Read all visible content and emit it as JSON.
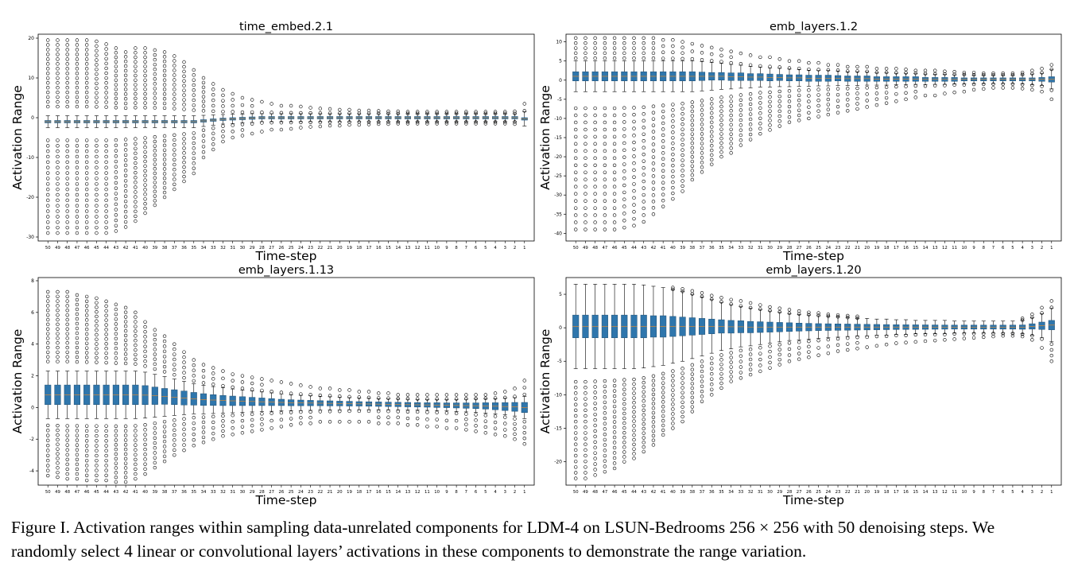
{
  "figure": {
    "caption_label": "Figure I.",
    "caption_text": "Activation ranges within sampling data-unrelated components for LDM-4 on LSUN-Bedrooms 256 × 256 with 50 denoising steps. We randomly select 4 linear or convolutional layers’ activations in these components to demonstrate the range variation."
  },
  "colors": {
    "box": "#2f76ac",
    "box_edge": "#1f4f72",
    "frame": "#000000"
  },
  "chart_data": [
    {
      "type": "box",
      "title": "time_embed.2.1",
      "xlabel": "Time-step",
      "ylabel": "Activation Range",
      "ylim": [
        -31,
        21
      ],
      "yticks": [
        -30,
        -20,
        -10,
        0,
        10,
        20
      ],
      "x": [
        50,
        49,
        48,
        47,
        46,
        45,
        44,
        43,
        42,
        41,
        40,
        39,
        38,
        37,
        36,
        35,
        34,
        33,
        32,
        31,
        30,
        29,
        28,
        27,
        26,
        25,
        24,
        23,
        22,
        21,
        20,
        19,
        18,
        17,
        16,
        15,
        14,
        13,
        12,
        11,
        10,
        9,
        8,
        7,
        6,
        5,
        4,
        3,
        2,
        1
      ],
      "box_half": [
        0.3,
        0.3,
        0.3,
        0.3,
        0.3,
        0.3,
        0.3,
        0.3,
        0.3,
        0.3,
        0.3,
        0.3,
        0.3,
        0.3,
        0.3,
        0.3,
        0.3,
        0.3,
        0.3,
        0.3,
        0.3,
        0.3,
        0.3,
        0.3,
        0.3,
        0.3,
        0.3,
        0.3,
        0.3,
        0.3,
        0.3,
        0.3,
        0.3,
        0.3,
        0.3,
        0.3,
        0.3,
        0.3,
        0.3,
        0.3,
        0.3,
        0.3,
        0.3,
        0.3,
        0.3,
        0.3,
        0.3,
        0.3,
        0.3,
        0.3
      ],
      "center": [
        -1,
        -1,
        -1,
        -1,
        -1,
        -1,
        -1,
        -1,
        -1,
        -1,
        -1,
        -1,
        -1,
        -1,
        -1,
        -1,
        -0.8,
        -0.6,
        -0.4,
        -0.3,
        -0.2,
        -0.1,
        0,
        0,
        0,
        0,
        0,
        0,
        0,
        0,
        0,
        0,
        0,
        0,
        0,
        0,
        0,
        0,
        0,
        0,
        0,
        0,
        0,
        0,
        0,
        0,
        0,
        0,
        0,
        -0.3
      ],
      "whisker": [
        1.5,
        1.5,
        1.5,
        1.5,
        1.5,
        1.5,
        1.5,
        1.5,
        1.5,
        1.5,
        1.5,
        1.5,
        1.5,
        1.5,
        1.5,
        1.5,
        1.4,
        1.3,
        1.2,
        1.2,
        1.1,
        1.1,
        1.0,
        1.0,
        1.0,
        1.0,
        1.0,
        1.0,
        1.0,
        1.0,
        1.0,
        1.0,
        1.0,
        1.0,
        1.0,
        1.0,
        1.0,
        1.0,
        1.0,
        1.0,
        1.0,
        1.0,
        1.0,
        1.0,
        1.0,
        1.0,
        1.0,
        1.0,
        1.0,
        1.8
      ],
      "out_max": [
        19.5,
        19.5,
        19.5,
        19.5,
        19.5,
        19.2,
        18.5,
        17.5,
        16.5,
        17.5,
        17.5,
        17,
        16.5,
        15.5,
        14,
        12,
        10,
        8.5,
        7,
        6,
        5,
        4.5,
        4,
        3.5,
        3,
        3,
        2.8,
        2.5,
        2.3,
        2.2,
        2,
        2,
        1.8,
        1.8,
        1.7,
        1.6,
        1.6,
        1.5,
        1.5,
        1.5,
        1.5,
        1.5,
        1.5,
        1.5,
        1.5,
        1.5,
        1.5,
        1.5,
        1.6,
        3.5
      ],
      "out_min": [
        -29,
        -29,
        -29,
        -29,
        -29,
        -29,
        -29,
        -28.5,
        -27.5,
        -26,
        -24,
        -22,
        -20,
        -18,
        -16,
        -14,
        -10,
        -8,
        -6,
        -5,
        -4.5,
        -4,
        -3.5,
        -3,
        -3,
        -2.8,
        -2.5,
        -2.3,
        -2.2,
        -2,
        -2,
        -1.8,
        -1.8,
        -1.7,
        -1.6,
        -1.6,
        -1.5,
        -1.5,
        -1.5,
        -1.5,
        -1.5,
        -1.5,
        -1.5,
        -1.5,
        -1.5,
        -1.5,
        -1.5,
        -1.5,
        -1.6,
        -2.5
      ]
    },
    {
      "type": "box",
      "title": "emb_layers.1.2",
      "xlabel": "Time-step",
      "ylabel": "Activation Range",
      "ylim": [
        -42,
        12
      ],
      "yticks": [
        -40,
        -35,
        -30,
        -25,
        -20,
        -15,
        -10,
        -5,
        0,
        5,
        10
      ],
      "x": [
        50,
        49,
        48,
        47,
        46,
        45,
        44,
        43,
        42,
        41,
        40,
        39,
        38,
        37,
        36,
        35,
        34,
        33,
        32,
        31,
        30,
        29,
        28,
        27,
        26,
        25,
        24,
        23,
        22,
        21,
        20,
        19,
        18,
        17,
        16,
        15,
        14,
        13,
        12,
        11,
        10,
        9,
        8,
        7,
        6,
        5,
        4,
        3,
        2,
        1
      ],
      "box_half": [
        1.2,
        1.2,
        1.2,
        1.2,
        1.2,
        1.2,
        1.2,
        1.2,
        1.2,
        1.2,
        1.2,
        1.2,
        1.2,
        1.1,
        1.0,
        1.0,
        1.0,
        1.0,
        0.9,
        0.9,
        0.9,
        0.8,
        0.8,
        0.8,
        0.8,
        0.8,
        0.8,
        0.7,
        0.7,
        0.7,
        0.7,
        0.6,
        0.6,
        0.6,
        0.6,
        0.6,
        0.5,
        0.5,
        0.5,
        0.5,
        0.4,
        0.4,
        0.4,
        0.4,
        0.4,
        0.4,
        0.4,
        0.4,
        0.5,
        0.7
      ],
      "center": [
        1,
        1,
        1,
        1,
        1,
        1,
        1,
        1,
        1,
        1,
        1,
        1,
        1,
        1,
        1,
        1,
        0.9,
        0.9,
        0.8,
        0.8,
        0.7,
        0.7,
        0.6,
        0.6,
        0.5,
        0.5,
        0.5,
        0.5,
        0.4,
        0.4,
        0.4,
        0.3,
        0.3,
        0.3,
        0.3,
        0.3,
        0.2,
        0.2,
        0.2,
        0.2,
        0.2,
        0.2,
        0.2,
        0.2,
        0.2,
        0.2,
        0.2,
        0.2,
        0.2,
        0.2
      ],
      "whisker": [
        4,
        4,
        4,
        4,
        4,
        4,
        4,
        4,
        4,
        4,
        4,
        4,
        4,
        3.8,
        3.6,
        3.4,
        3.2,
        3,
        2.8,
        2.6,
        2.5,
        2.4,
        2.3,
        2.2,
        2.1,
        2,
        2,
        1.9,
        1.8,
        1.8,
        1.7,
        1.6,
        1.6,
        1.5,
        1.5,
        1.4,
        1.4,
        1.3,
        1.3,
        1.2,
        1.2,
        1.1,
        1.1,
        1.1,
        1.1,
        1.1,
        1.2,
        1.4,
        1.6,
        2.5
      ],
      "out_max": [
        11,
        11,
        11,
        11,
        11,
        11,
        11,
        11,
        11,
        10.5,
        10.5,
        10,
        9.5,
        9,
        8.5,
        8,
        7.5,
        7,
        6.5,
        6,
        6,
        5.5,
        5,
        5,
        4.5,
        4.5,
        4,
        4,
        3.5,
        3.5,
        3.5,
        3,
        3,
        3,
        2.8,
        2.5,
        2.5,
        2.5,
        2.3,
        2.2,
        2,
        2,
        1.8,
        1.8,
        1.8,
        1.8,
        2,
        2.5,
        3,
        4
      ],
      "out_min": [
        -39,
        -39,
        -39,
        -39,
        -39,
        -38.5,
        -38,
        -37,
        -35,
        -33,
        -31,
        -29,
        -26,
        -24,
        -22,
        -20,
        -19,
        -17,
        -15.5,
        -14,
        -13,
        -12,
        -11,
        -10.5,
        -10,
        -9.5,
        -9,
        -8.5,
        -8,
        -7.5,
        -7,
        -6.5,
        -6,
        -5.5,
        -5,
        -4.5,
        -4,
        -4,
        -3.5,
        -3.2,
        -3,
        -2.5,
        -2.3,
        -2,
        -2,
        -2,
        -2.2,
        -2.5,
        -3,
        -5
      ]
    },
    {
      "type": "box",
      "title": "emb_layers.1.13",
      "xlabel": "Time-step",
      "ylabel": "Activation Range",
      "ylim": [
        -4.9,
        8.2
      ],
      "yticks": [
        -4,
        -2,
        0,
        2,
        4,
        6,
        8
      ],
      "x": [
        50,
        49,
        48,
        47,
        46,
        45,
        44,
        43,
        42,
        41,
        40,
        39,
        38,
        37,
        36,
        35,
        34,
        33,
        32,
        31,
        30,
        29,
        28,
        27,
        26,
        25,
        24,
        23,
        22,
        21,
        20,
        19,
        18,
        17,
        16,
        15,
        14,
        13,
        12,
        11,
        10,
        9,
        8,
        7,
        6,
        5,
        4,
        3,
        2,
        1
      ],
      "box_half": [
        0.62,
        0.62,
        0.62,
        0.62,
        0.62,
        0.62,
        0.62,
        0.62,
        0.62,
        0.62,
        0.6,
        0.55,
        0.5,
        0.47,
        0.44,
        0.4,
        0.37,
        0.34,
        0.32,
        0.3,
        0.28,
        0.26,
        0.24,
        0.22,
        0.2,
        0.19,
        0.18,
        0.17,
        0.16,
        0.16,
        0.15,
        0.15,
        0.14,
        0.14,
        0.14,
        0.14,
        0.14,
        0.14,
        0.14,
        0.14,
        0.15,
        0.15,
        0.16,
        0.17,
        0.18,
        0.2,
        0.22,
        0.25,
        0.28,
        0.32
      ],
      "center": [
        0.8,
        0.8,
        0.8,
        0.8,
        0.8,
        0.8,
        0.8,
        0.8,
        0.8,
        0.8,
        0.78,
        0.74,
        0.7,
        0.65,
        0.6,
        0.55,
        0.5,
        0.47,
        0.44,
        0.42,
        0.4,
        0.38,
        0.36,
        0.34,
        0.32,
        0.3,
        0.29,
        0.28,
        0.27,
        0.26,
        0.25,
        0.24,
        0.23,
        0.22,
        0.21,
        0.2,
        0.19,
        0.18,
        0.17,
        0.16,
        0.15,
        0.14,
        0.13,
        0.12,
        0.11,
        0.1,
        0.08,
        0.06,
        0.04,
        0.0
      ],
      "whisker": [
        1.5,
        1.5,
        1.5,
        1.5,
        1.5,
        1.5,
        1.5,
        1.5,
        1.5,
        1.5,
        1.45,
        1.35,
        1.25,
        1.15,
        1.05,
        0.95,
        0.9,
        0.85,
        0.8,
        0.75,
        0.7,
        0.66,
        0.62,
        0.58,
        0.54,
        0.5,
        0.48,
        0.46,
        0.44,
        0.42,
        0.4,
        0.38,
        0.37,
        0.36,
        0.35,
        0.34,
        0.34,
        0.34,
        0.34,
        0.34,
        0.35,
        0.36,
        0.38,
        0.4,
        0.42,
        0.45,
        0.48,
        0.52,
        0.58,
        0.7
      ],
      "out_max": [
        7.3,
        7.3,
        7.3,
        7.1,
        7.0,
        6.9,
        6.7,
        6.5,
        6.3,
        6.0,
        5.4,
        4.9,
        4.5,
        4.0,
        3.5,
        3.0,
        2.7,
        2.5,
        2.3,
        2.1,
        2.0,
        1.9,
        1.8,
        1.7,
        1.6,
        1.5,
        1.4,
        1.3,
        1.2,
        1.2,
        1.1,
        1.1,
        1.0,
        1.0,
        0.9,
        0.9,
        0.8,
        0.8,
        0.8,
        0.8,
        0.8,
        0.8,
        0.8,
        0.8,
        0.8,
        0.8,
        0.9,
        1.0,
        1.2,
        1.7
      ],
      "out_min": [
        -4.3,
        -4.4,
        -4.5,
        -4.5,
        -4.6,
        -4.6,
        -4.6,
        -4.7,
        -4.7,
        -4.5,
        -4.2,
        -3.8,
        -3.4,
        -3.0,
        -2.7,
        -2.4,
        -2.2,
        -2.0,
        -1.8,
        -1.7,
        -1.6,
        -1.5,
        -1.4,
        -1.3,
        -1.2,
        -1.1,
        -1.0,
        -1.0,
        -0.9,
        -0.9,
        -0.9,
        -0.9,
        -0.9,
        -0.9,
        -1.0,
        -1.0,
        -1.0,
        -1.1,
        -1.1,
        -1.2,
        -1.2,
        -1.3,
        -1.3,
        -1.4,
        -1.5,
        -1.6,
        -1.7,
        -1.8,
        -2.0,
        -2.3
      ]
    },
    {
      "type": "box",
      "title": "emb_layers.1.20",
      "xlabel": "Time-step",
      "ylabel": "Activation Range",
      "ylim": [
        -23.5,
        7.5
      ],
      "yticks": [
        -20,
        -15,
        -10,
        -5,
        0,
        5
      ],
      "x": [
        50,
        49,
        48,
        47,
        46,
        45,
        44,
        43,
        42,
        41,
        40,
        39,
        38,
        37,
        36,
        35,
        34,
        33,
        32,
        31,
        30,
        29,
        28,
        27,
        26,
        25,
        24,
        23,
        22,
        21,
        20,
        19,
        18,
        17,
        16,
        15,
        14,
        13,
        12,
        11,
        10,
        9,
        8,
        7,
        6,
        5,
        4,
        3,
        2,
        1
      ],
      "box_half": [
        1.7,
        1.7,
        1.7,
        1.7,
        1.7,
        1.7,
        1.7,
        1.7,
        1.6,
        1.6,
        1.5,
        1.4,
        1.3,
        1.2,
        1.1,
        1.0,
        0.95,
        0.9,
        0.85,
        0.8,
        0.75,
        0.7,
        0.65,
        0.6,
        0.56,
        0.52,
        0.5,
        0.48,
        0.46,
        0.44,
        0.42,
        0.4,
        0.38,
        0.36,
        0.35,
        0.34,
        0.33,
        0.32,
        0.31,
        0.3,
        0.3,
        0.3,
        0.3,
        0.3,
        0.3,
        0.3,
        0.32,
        0.4,
        0.55,
        0.7
      ],
      "center": [
        0.2,
        0.2,
        0.2,
        0.2,
        0.2,
        0.2,
        0.2,
        0.2,
        0.2,
        0.2,
        0.2,
        0.2,
        0.2,
        0.2,
        0.2,
        0.2,
        0.15,
        0.15,
        0.1,
        0.1,
        0.1,
        0.1,
        0.1,
        0.1,
        0.1,
        0.1,
        0.1,
        0.1,
        0.1,
        0.1,
        0.1,
        0.1,
        0.1,
        0.1,
        0.1,
        0.1,
        0.1,
        0.1,
        0.1,
        0.1,
        0.1,
        0.1,
        0.1,
        0.1,
        0.1,
        0.1,
        0.1,
        0.2,
        0.3,
        0.4
      ],
      "whisker": [
        6.3,
        6.3,
        6.3,
        6.3,
        6.3,
        6.3,
        6.3,
        6.2,
        6.0,
        5.8,
        5.5,
        5.2,
        4.8,
        4.4,
        4.0,
        3.6,
        3.3,
        3.0,
        2.8,
        2.6,
        2.4,
        2.2,
        2.0,
        1.9,
        1.8,
        1.7,
        1.6,
        1.5,
        1.4,
        1.3,
        1.3,
        1.2,
        1.2,
        1.1,
        1.1,
        1.0,
        1.0,
        1.0,
        1.0,
        0.9,
        0.9,
        0.9,
        0.9,
        0.9,
        0.9,
        0.9,
        1.0,
        1.3,
        1.8,
        2.5
      ],
      "out_max": [
        6.3,
        6.3,
        6.3,
        6.3,
        6.3,
        6.3,
        6.3,
        6.3,
        6.2,
        6.1,
        6.0,
        5.8,
        5.5,
        5.2,
        4.8,
        4.5,
        4.2,
        4.0,
        3.7,
        3.4,
        3.1,
        2.9,
        2.7,
        2.5,
        2.3,
        2.2,
        2.0,
        1.9,
        1.8,
        1.7,
        1.6,
        1.5,
        1.5,
        1.4,
        1.4,
        1.3,
        1.3,
        1.3,
        1.2,
        1.2,
        1.2,
        1.2,
        1.2,
        1.2,
        1.2,
        1.2,
        1.4,
        2.0,
        3.0,
        4.0
      ],
      "out_min": [
        -22.5,
        -22.5,
        -22,
        -21.5,
        -21,
        -20,
        -19.5,
        -18.5,
        -17.5,
        -16,
        -15,
        -14,
        -12.5,
        -11,
        -10,
        -9,
        -8,
        -7.5,
        -7,
        -6.5,
        -6,
        -5.5,
        -5,
        -4.7,
        -4.4,
        -4.1,
        -3.8,
        -3.5,
        -3.3,
        -3.1,
        -2.9,
        -2.7,
        -2.5,
        -2.3,
        -2.2,
        -2.1,
        -2.0,
        -1.9,
        -1.8,
        -1.7,
        -1.6,
        -1.5,
        -1.4,
        -1.3,
        -1.2,
        -1.2,
        -1.3,
        -1.8,
        -3.0,
        -5.0
      ]
    }
  ]
}
